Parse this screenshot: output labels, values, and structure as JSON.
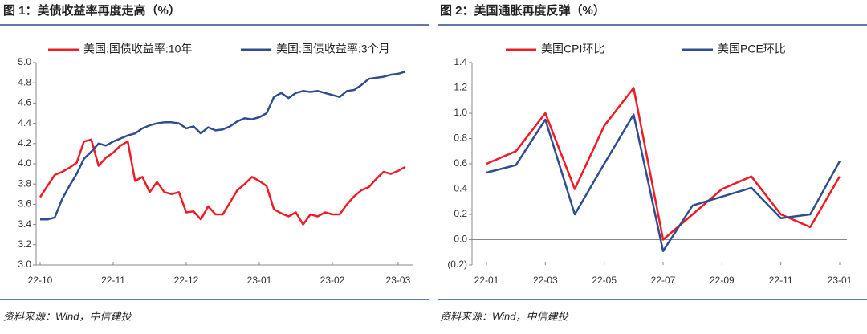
{
  "chart_data": [
    {
      "type": "line",
      "title": "图 1：美债收益率再度走高（%）",
      "source": "资料来源：Wind，中信建投",
      "categories": [
        "22-10",
        null,
        null,
        null,
        null,
        null,
        null,
        null,
        null,
        null,
        "22-11",
        null,
        null,
        null,
        null,
        null,
        null,
        null,
        null,
        null,
        "22-12",
        null,
        null,
        null,
        null,
        null,
        null,
        null,
        null,
        null,
        "23-01",
        null,
        null,
        null,
        null,
        null,
        null,
        null,
        null,
        null,
        "23-02",
        null,
        null,
        null,
        null,
        null,
        null,
        null,
        null,
        "23-03",
        null
      ],
      "series": [
        {
          "name": "美国:国债收益率:10年",
          "color": "#ee1c25",
          "values": [
            3.67,
            3.78,
            3.89,
            3.92,
            3.96,
            4.01,
            4.22,
            4.24,
            3.98,
            4.06,
            4.11,
            4.18,
            4.22,
            3.83,
            3.87,
            3.72,
            3.82,
            3.72,
            3.7,
            3.72,
            3.52,
            3.53,
            3.45,
            3.58,
            3.5,
            3.5,
            3.62,
            3.74,
            3.8,
            3.87,
            3.83,
            3.78,
            3.55,
            3.51,
            3.48,
            3.52,
            3.4,
            3.5,
            3.48,
            3.52,
            3.5,
            3.5,
            3.6,
            3.68,
            3.74,
            3.77,
            3.85,
            3.92,
            3.9,
            3.93,
            3.97
          ]
        },
        {
          "name": "美国:国债收益率:3个月",
          "color": "#2e4e8f",
          "values": [
            3.45,
            3.45,
            3.47,
            3.65,
            3.78,
            3.9,
            4.05,
            4.12,
            4.2,
            4.18,
            4.22,
            4.25,
            4.28,
            4.3,
            4.35,
            4.38,
            4.4,
            4.41,
            4.41,
            4.4,
            4.35,
            4.37,
            4.3,
            4.36,
            4.33,
            4.34,
            4.37,
            4.42,
            4.45,
            4.44,
            4.46,
            4.5,
            4.66,
            4.7,
            4.65,
            4.7,
            4.72,
            4.71,
            4.72,
            4.7,
            4.68,
            4.66,
            4.72,
            4.73,
            4.78,
            4.84,
            4.85,
            4.86,
            4.88,
            4.89,
            4.91
          ]
        }
      ],
      "ylim": [
        3.0,
        5.0
      ],
      "yticks": [
        {
          "value": 3.0,
          "label": "3.0"
        },
        3.2,
        3.4,
        3.6,
        3.8,
        {
          "value": 4.0,
          "label": "4.0"
        },
        4.2,
        4.4,
        4.6,
        4.8,
        {
          "value": 5.0,
          "label": "5.0"
        }
      ],
      "legend": "top-left"
    },
    {
      "type": "line",
      "title": "图 2：美国通胀再度反弹（%）",
      "source": "资料来源：Wind，中信建投",
      "categories": [
        "22-01",
        null,
        "22-03",
        null,
        "22-05",
        null,
        "22-07",
        null,
        "22-09",
        null,
        "22-11",
        null,
        "23-01"
      ],
      "series": [
        {
          "name": "美国CPI环比",
          "color": "#ee1c25",
          "values": [
            0.6,
            0.7,
            1.0,
            0.4,
            0.9,
            1.2,
            0.0,
            0.2,
            0.4,
            0.5,
            0.2,
            0.1,
            0.5
          ]
        },
        {
          "name": "美国PCE环比",
          "color": "#2e4e8f",
          "values": [
            0.53,
            0.59,
            0.95,
            0.2,
            0.6,
            0.99,
            -0.09,
            0.27,
            0.34,
            0.41,
            0.17,
            0.2,
            0.62
          ]
        }
      ],
      "ylim": [
        -0.2,
        1.4
      ],
      "yticks": [
        {
          "value": -0.2,
          "label": "(0.2)"
        },
        {
          "value": 0.0,
          "label": "0.0"
        },
        0.2,
        0.4,
        0.6,
        0.8,
        {
          "value": 1.0,
          "label": "1.0"
        },
        1.2,
        1.4
      ],
      "legend": "top-left"
    }
  ]
}
